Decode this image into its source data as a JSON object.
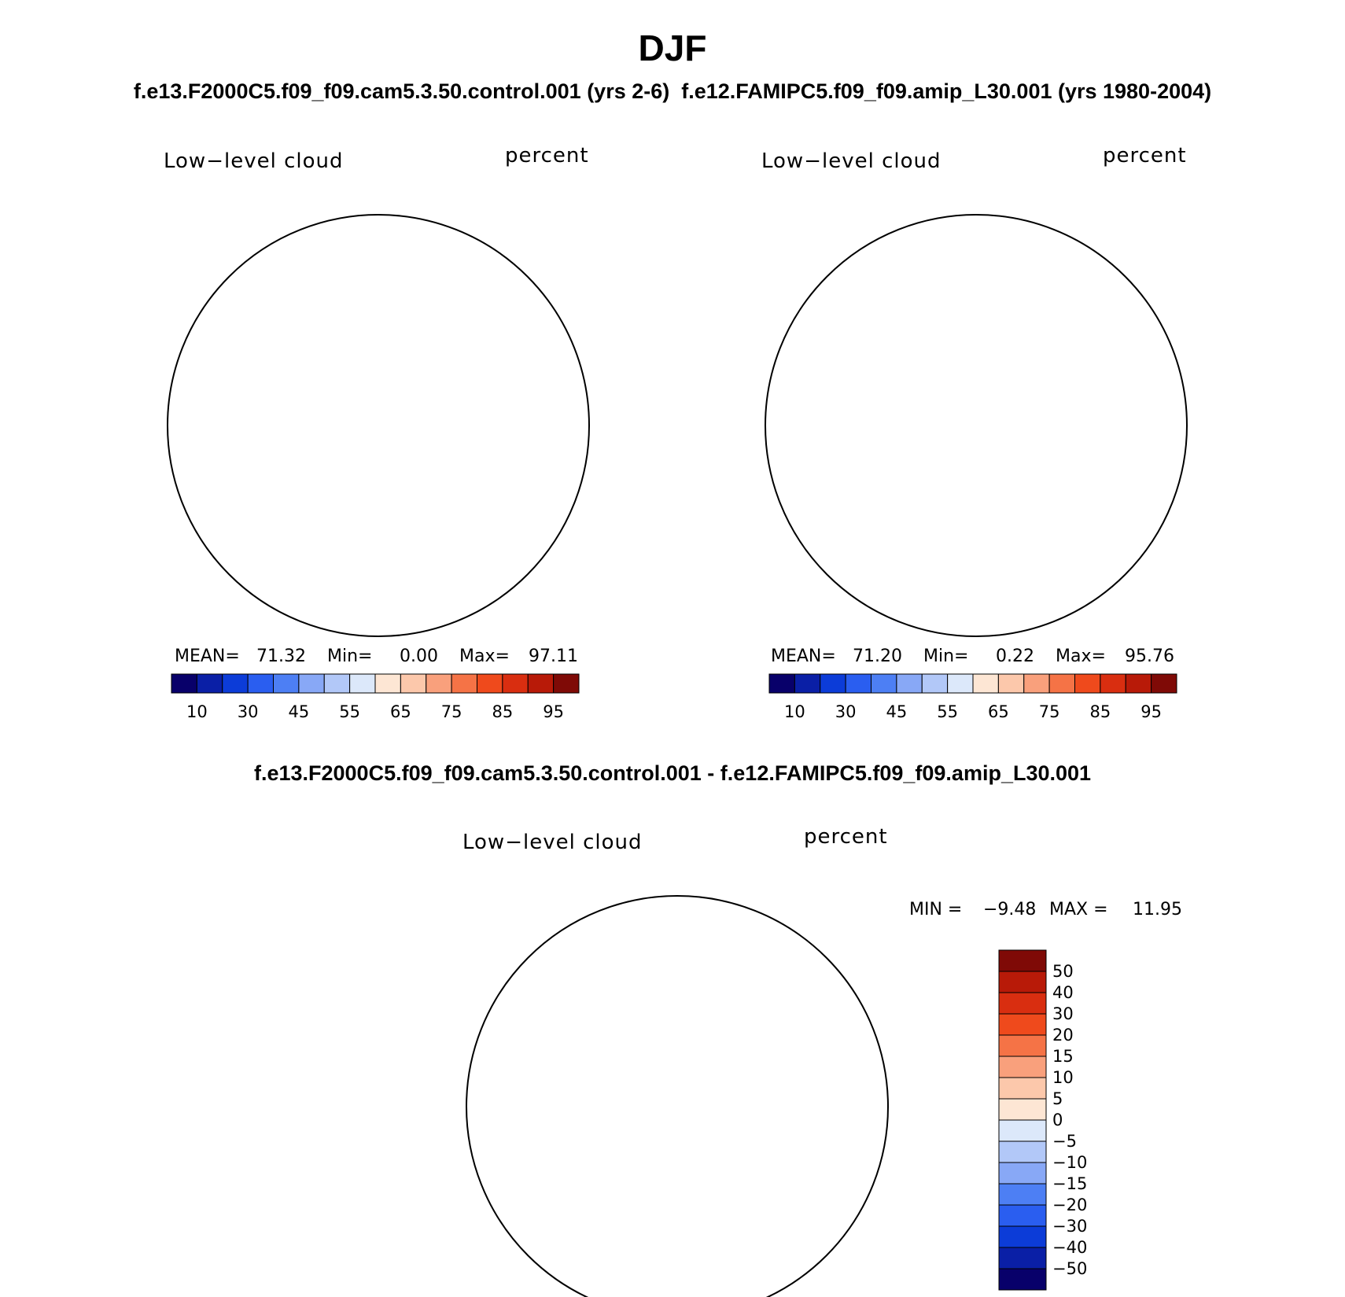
{
  "title": "DJF",
  "subtitle": "f.e13.F2000C5.f09_f09.cam5.3.50.control.001 (yrs 2-6)  f.e12.FAMIPC5.f09_f09.amip_L30.001 (yrs 1980-2004)",
  "diff_title": "f.e13.F2000C5.f09_f09.cam5.3.50.control.001 - f.e12.FAMIPC5.f09_f09.amip_L30.001",
  "panels": [
    {
      "variable": "Low−level cloud",
      "units": "percent",
      "stats": {
        "mean_label": "MEAN=",
        "mean": "71.32",
        "min_label": "Min=",
        "min": "0.00",
        "max_label": "Max=",
        "max": "97.11"
      }
    },
    {
      "variable": "Low−level cloud",
      "units": "percent",
      "stats": {
        "mean_label": "MEAN=",
        "mean": "71.20",
        "min_label": "Min=",
        "min": "0.22",
        "max_label": "Max=",
        "max": "95.76"
      }
    },
    {
      "variable": "Low−level cloud",
      "units": "percent",
      "stats": {
        "min_label": "MIN =",
        "min": "−9.48",
        "max_label": "MAX =",
        "max": "11.95"
      }
    }
  ],
  "colorbar_abs": {
    "colors": [
      "#08006a",
      "#0a1fa6",
      "#0c3cd8",
      "#2a5ef0",
      "#4d7ff4",
      "#88a8f6",
      "#b2c8f8",
      "#dce8fa",
      "#fde6d4",
      "#fcc8ab",
      "#f9a07c",
      "#f57346",
      "#ef4a1c",
      "#d92e10",
      "#b81a08",
      "#7f0a06"
    ],
    "ticks": [
      "10",
      "30",
      "45",
      "55",
      "65",
      "75",
      "85",
      "95"
    ]
  },
  "colorbar_diff": {
    "colors": [
      "#7f0a06",
      "#b81a08",
      "#d92e10",
      "#ef4a1c",
      "#f57346",
      "#f9a07c",
      "#fcc8ab",
      "#fde6d4",
      "#dce8fa",
      "#b2c8f8",
      "#88a8f6",
      "#4d7ff4",
      "#2a5ef0",
      "#0c3cd8",
      "#0a1fa6",
      "#08006a"
    ],
    "ticks": [
      "50",
      "40",
      "30",
      "20",
      "15",
      "10",
      "5",
      "0",
      "−5",
      "−10",
      "−15",
      "−20",
      "−30",
      "−40",
      "−50"
    ]
  }
}
